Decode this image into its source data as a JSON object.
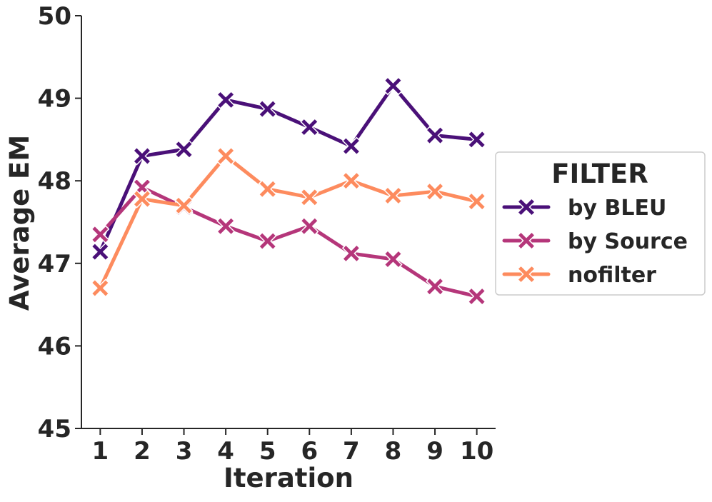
{
  "chart_data": {
    "type": "line",
    "xlabel": "Iteration",
    "ylabel": "Average EM",
    "x": [
      1,
      2,
      3,
      4,
      5,
      6,
      7,
      8,
      9,
      10
    ],
    "x_tick_labels": [
      "1",
      "2",
      "3",
      "4",
      "5",
      "6",
      "7",
      "8",
      "9",
      "10"
    ],
    "y_ticks": [
      45,
      46,
      47,
      48,
      49,
      50
    ],
    "y_tick_labels": [
      "45",
      "46",
      "47",
      "48",
      "49",
      "50"
    ],
    "ylim": [
      45,
      50
    ],
    "grid": false,
    "marker": "X",
    "legend": {
      "title": "FILTER",
      "placement": "right, outside plot area"
    },
    "series": [
      {
        "name": "by BLEU",
        "color": "#4a1078",
        "values": [
          47.14,
          48.3,
          48.38,
          48.98,
          48.87,
          48.65,
          48.42,
          49.15,
          48.55,
          48.5
        ]
      },
      {
        "name": "by Source",
        "color": "#b5367a",
        "values": [
          47.35,
          47.92,
          47.68,
          47.45,
          47.27,
          47.45,
          47.12,
          47.05,
          46.72,
          46.6
        ]
      },
      {
        "name": "nofilter",
        "color": "#fd8b5e",
        "values": [
          46.7,
          47.78,
          47.7,
          48.3,
          47.9,
          47.8,
          48.0,
          47.82,
          47.87,
          47.75
        ]
      }
    ]
  }
}
